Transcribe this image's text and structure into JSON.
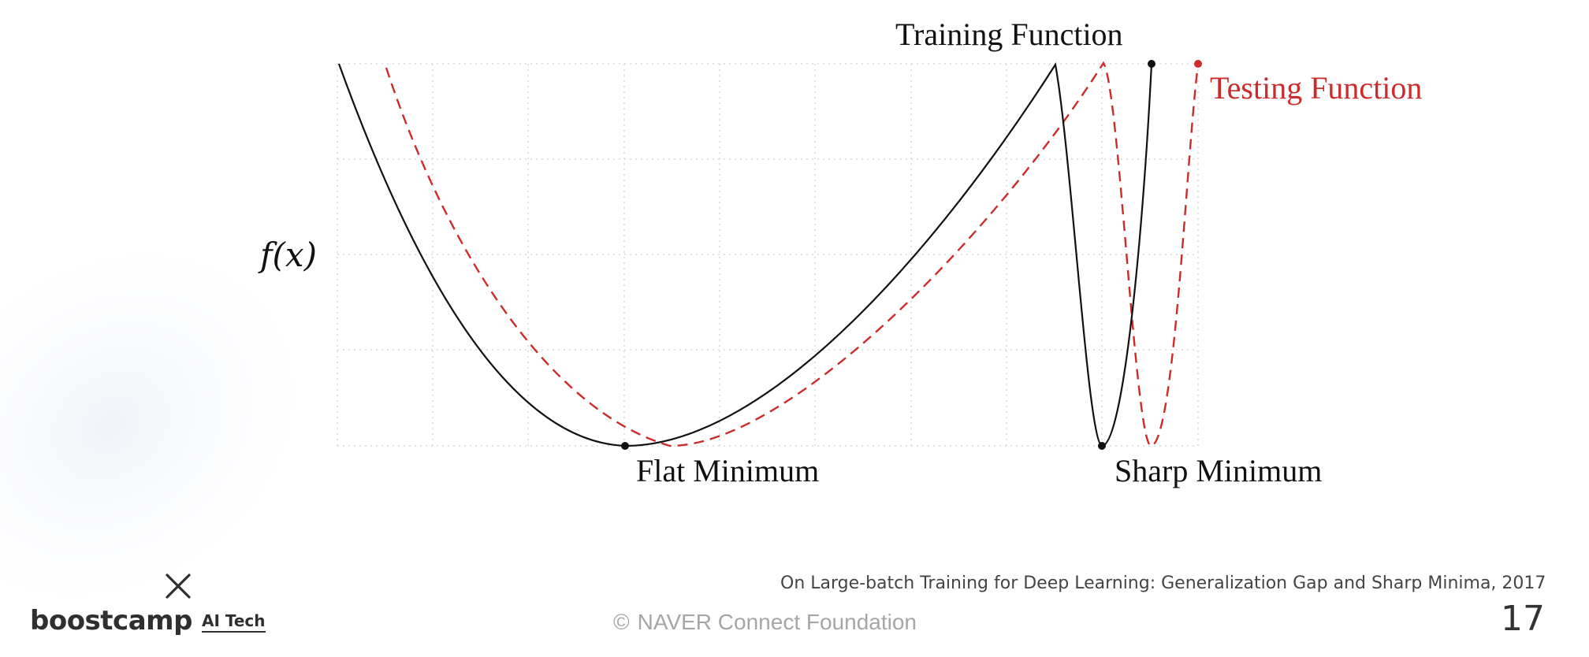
{
  "diagram": {
    "axis_label": "f(x)",
    "training_label": "Training Function",
    "testing_label": "Testing Function",
    "flat_label": "Flat Minimum",
    "sharp_label": "Sharp Minimum",
    "colors": {
      "training": "#111111",
      "testing": "#cc2b2b",
      "grid": "#d9d9d9"
    }
  },
  "citation": "On Large-batch Training for Deep Learning: Generalization Gap and Sharp Minima, 2017",
  "footer": {
    "copyright_symbol": "©",
    "organization": "NAVER Connect Foundation",
    "page_number": "17"
  },
  "logo": {
    "wordmark": "boostcamp",
    "subtitle": "AI Tech",
    "icon": "x-mark-icon"
  }
}
